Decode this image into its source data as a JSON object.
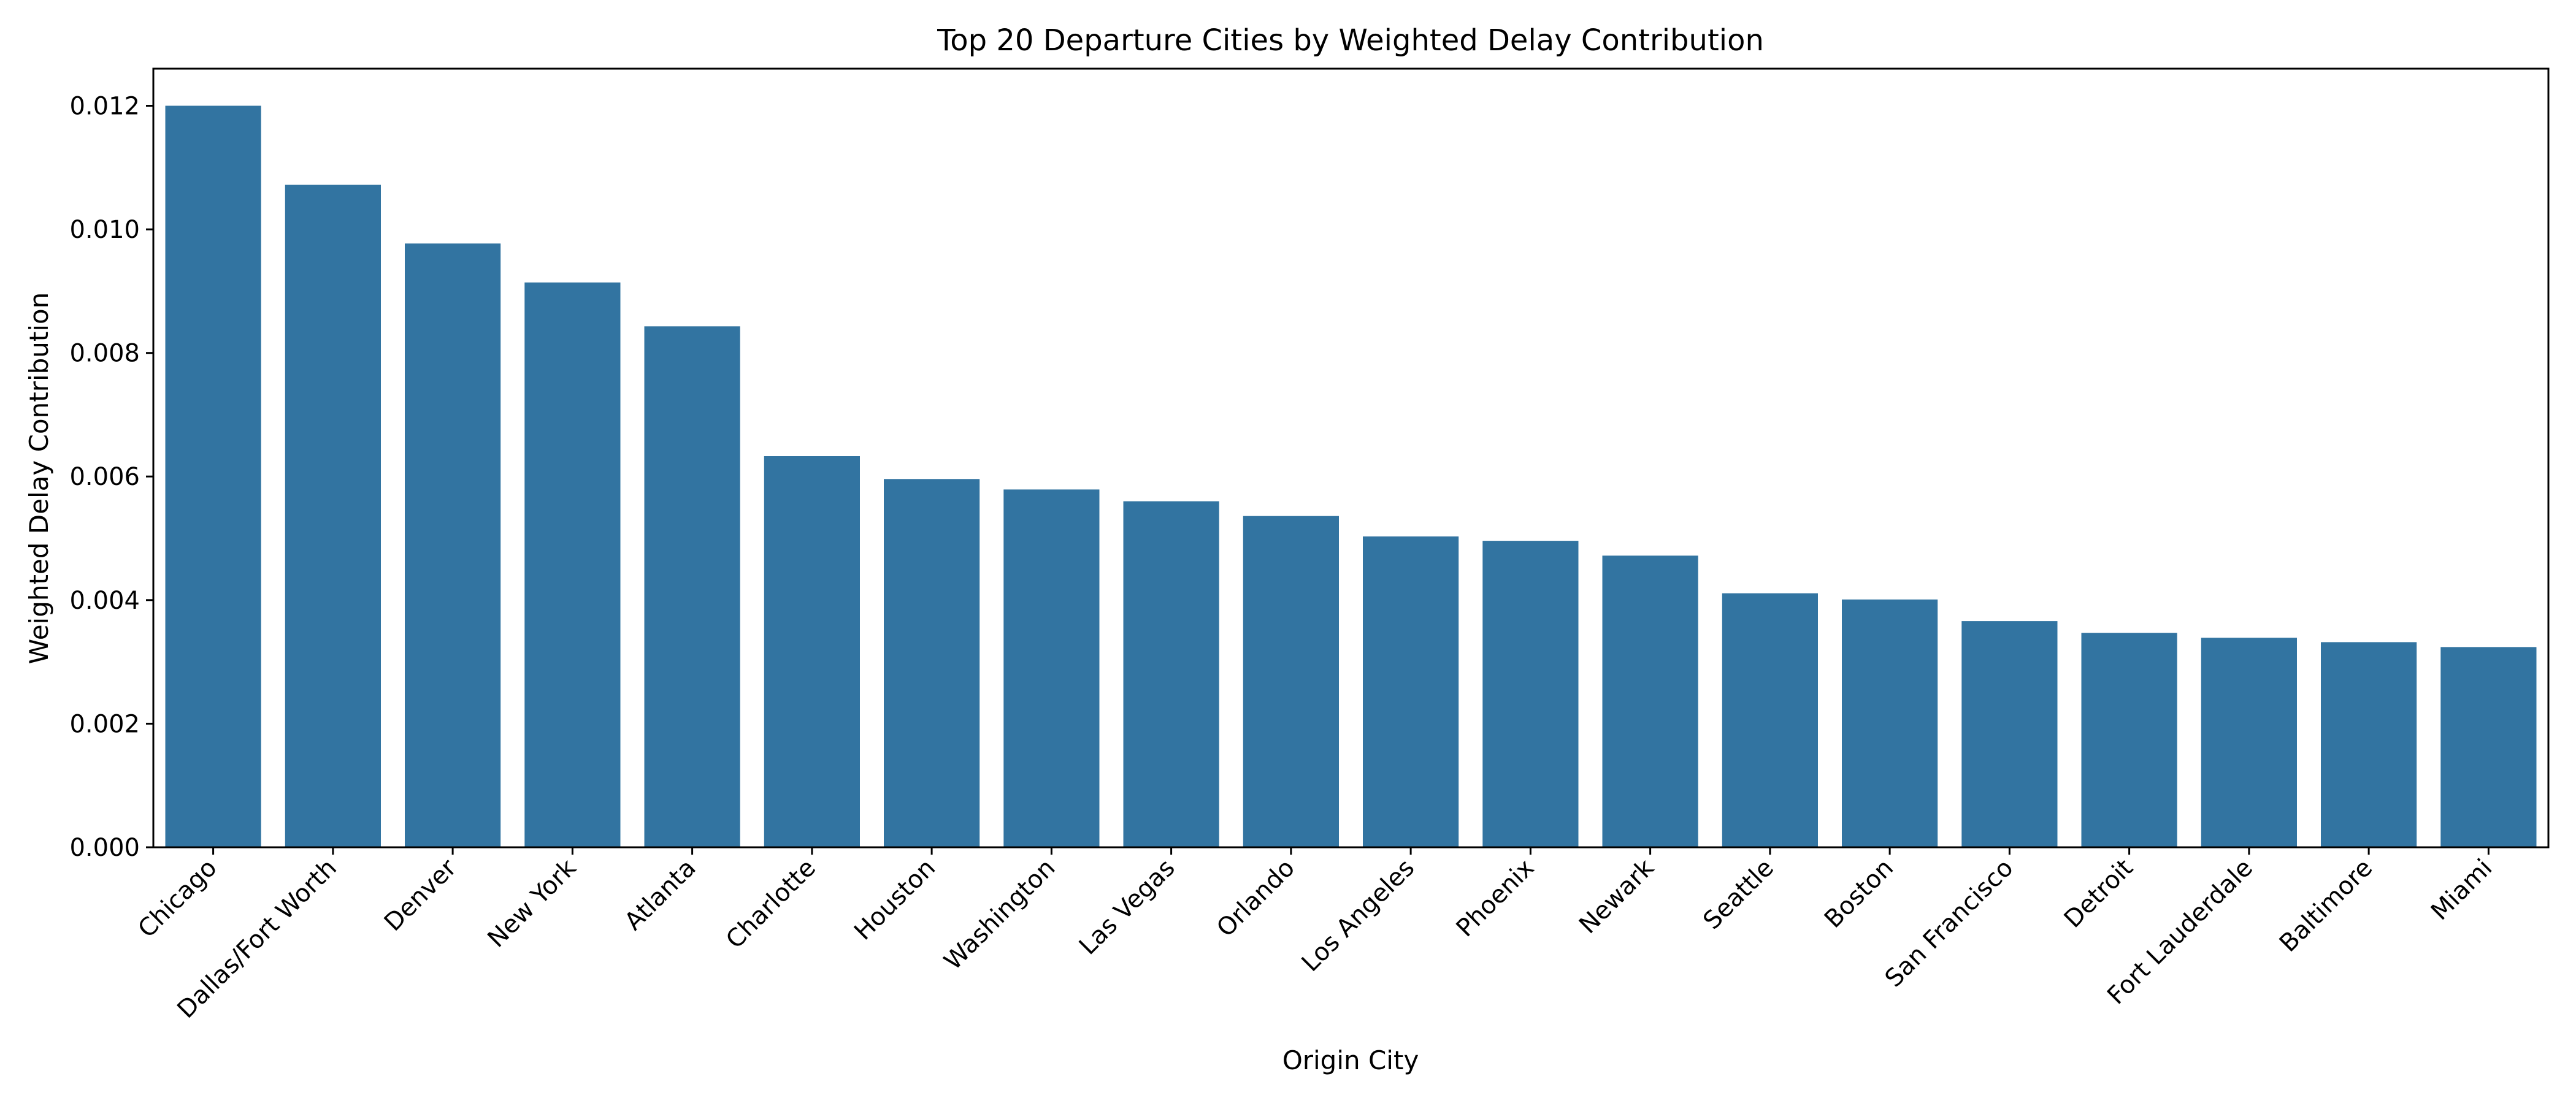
{
  "chart_data": {
    "type": "bar",
    "title": "Top 20 Departure Cities by Weighted Delay Contribution",
    "xlabel": "Origin City",
    "ylabel": "Weighted Delay Contribution",
    "ylim": [
      0,
      0.0126
    ],
    "yticks": [
      "0.000",
      "0.002",
      "0.004",
      "0.006",
      "0.008",
      "0.010",
      "0.012"
    ],
    "grid": false,
    "bar_color": "#3274a1",
    "categories": [
      "Chicago",
      "Dallas/Fort Worth",
      "Denver",
      "New York",
      "Atlanta",
      "Charlotte",
      "Houston",
      "Washington",
      "Las Vegas",
      "Orlando",
      "Los Angeles",
      "Phoenix",
      "Newark",
      "Seattle",
      "Boston",
      "San Francisco",
      "Detroit",
      "Fort Lauderdale",
      "Baltimore",
      "Miami"
    ],
    "values": [
      0.012,
      0.01072,
      0.00977,
      0.00914,
      0.00843,
      0.00633,
      0.00596,
      0.00579,
      0.0056,
      0.00536,
      0.00503,
      0.00496,
      0.00472,
      0.00411,
      0.00401,
      0.00366,
      0.00347,
      0.00339,
      0.00332,
      0.00324
    ]
  }
}
